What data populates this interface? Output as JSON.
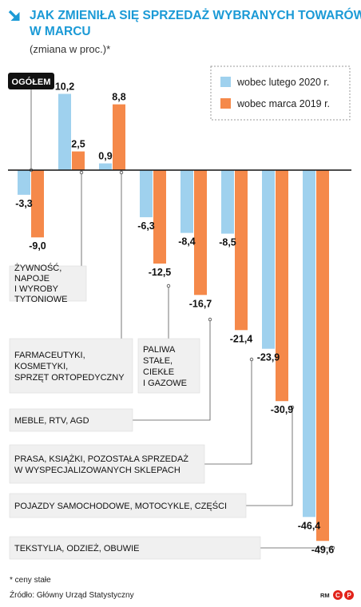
{
  "chart_data": {
    "type": "bar",
    "title": "JAK ZMIENIŁA SIĘ SPRZEDAŻ WYBRANYCH TOWARÓW W MARCU",
    "subtitle": "(zmiana w proc.)*",
    "overall_label": "OGÓŁEM",
    "categories": [
      "OGÓŁEM",
      "ŻYWNOŚĆ, NAPOJE I WYROBY TYTONIOWE",
      "FARMACEUTYKI, KOSMETYKI, SPRZĘT ORTOPEDYCZNY",
      "PALIWA STAŁE, CIEKŁE I GAZOWE",
      "MEBLE, RTV, AGD",
      "PRASA, KSIĄŻKI, POZOSTAŁA SPRZEDAŻ W WYSPECJALIZOWANYCH SKLEPACH",
      "POJAZDY SAMOCHODOWE, MOTOCYKLE, CZĘŚCI",
      "TEKSTYLIA, ODZIEŻ, OBUWIE"
    ],
    "category_lines": [
      [
        "OGÓŁEM"
      ],
      [
        "ŻYWNOŚĆ,",
        "NAPOJE",
        "I WYROBY",
        "TYTONIOWE"
      ],
      [
        "FARMACEUTYKI,",
        "KOSMETYKI,",
        "SPRZĘT ORTOPEDYCZNY"
      ],
      [
        "PALIWA",
        "STAŁE,",
        "CIEKŁE",
        "I GAZOWE"
      ],
      [
        "MEBLE, RTV, AGD"
      ],
      [
        "PRASA, KSIĄŻKI, POZOSTAŁA SPRZEDAŻ",
        "W WYSPECJALIZOWANYCH SKLEPACH"
      ],
      [
        "POJAZDY SAMOCHODOWE, MOTOCYKLE, CZĘŚCI"
      ],
      [
        "TEKSTYLIA, ODZIEŻ, OBUWIE"
      ]
    ],
    "series": [
      {
        "name": "wobec lutego 2020 r.",
        "color": "#9fd1ee",
        "values": [
          -3.3,
          10.2,
          0.9,
          -6.3,
          -8.4,
          -8.5,
          -23.9,
          -46.4
        ],
        "labels": [
          "-3,3",
          "10,2",
          "0,9",
          "-6,3",
          "-8,4",
          "-8,5",
          "-23,9",
          "-46,4"
        ]
      },
      {
        "name": "wobec marca 2019 r.",
        "color": "#f5894a",
        "values": [
          -9.0,
          2.5,
          8.8,
          -12.5,
          -16.7,
          -21.4,
          -30.9,
          -49.6
        ],
        "labels": [
          "-9,0",
          "2,5",
          "8,8",
          "-12,5",
          "-16,7",
          "-21,4",
          "-30,9",
          "-49,6"
        ]
      }
    ],
    "legend_position": "top-right",
    "grid": false,
    "footnote": "* ceny stałe",
    "source": "Źródło: Główny Urząd Statystyczny",
    "credit": "RM",
    "colors": {
      "title": "#1b9ad6",
      "axis": "#111111",
      "box_bg": "#f0f0f0",
      "badge_bg": "#111111"
    }
  }
}
